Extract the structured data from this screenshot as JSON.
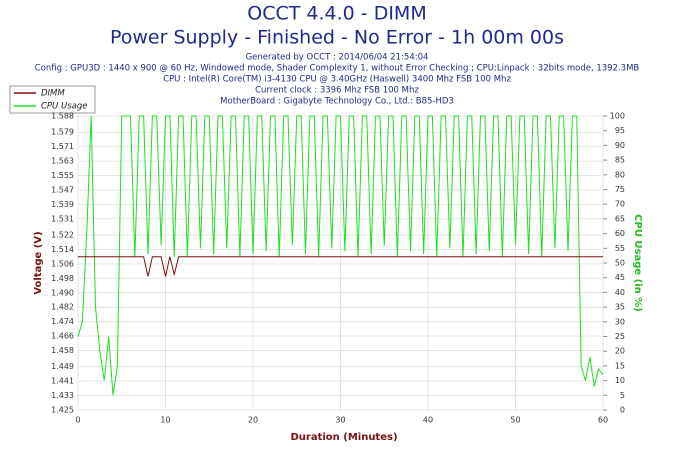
{
  "chart_data": {
    "type": "line",
    "title": "OCCT 4.4.0 - DIMM",
    "subtitle": "Power Supply - Finished - No Error - 1h 00m 00s",
    "info": [
      "Generated by OCCT : 2014/06/04 21:54:04",
      "Config : GPU3D : 1440 x 900 @ 60 Hz, Windowed mode, Shader Complexity 1, without Error Checking ; CPU:Linpack : 32bits mode, 1392.3MB",
      "CPU : Intel(R) Core(TM) i3-4130 CPU @ 3.40GHz (Haswell) 3400 Mhz FSB 100 Mhz",
      "Current clock : 3396 Mhz FSB 100 Mhz",
      "MotherBoard : Gigabyte Technology Co., Ltd.: B85-HD3"
    ],
    "xlabel": "Duration (Minutes)",
    "ylabel": "Voltage (V)",
    "y2label": "CPU Usage (in %)",
    "legend": "top-left",
    "grid": true,
    "xlim": [
      0,
      60
    ],
    "xticks": [
      0,
      10,
      20,
      30,
      40,
      50,
      60
    ],
    "ylim": [
      1.425,
      1.588
    ],
    "yticks": [
      1.425,
      1.433,
      1.441,
      1.449,
      1.458,
      1.466,
      1.474,
      1.482,
      {
        "value": 1.49,
        "label": "1.490"
      },
      1.498,
      1.506,
      1.514,
      1.522,
      1.531,
      1.539,
      1.547,
      1.555,
      1.563,
      1.571,
      1.579,
      1.588
    ],
    "y2lim": [
      0,
      100
    ],
    "y2ticks": [
      0,
      5,
      10,
      15,
      20,
      25,
      30,
      35,
      40,
      45,
      50,
      55,
      60,
      65,
      70,
      75,
      80,
      85,
      90,
      95,
      100
    ],
    "x": [
      0,
      0.5,
      1,
      1.5,
      2,
      2.5,
      3,
      3.5,
      4,
      4.5,
      5,
      5.5,
      6,
      6.5,
      7,
      7.5,
      8,
      8.5,
      9,
      9.5,
      10,
      10.5,
      11,
      11.5,
      12,
      12.5,
      13,
      13.5,
      14,
      14.5,
      15,
      15.5,
      16,
      16.5,
      17,
      17.5,
      18,
      18.5,
      19,
      19.5,
      20,
      20.5,
      21,
      21.5,
      22,
      22.5,
      23,
      23.5,
      24,
      24.5,
      25,
      25.5,
      26,
      26.5,
      27,
      27.5,
      28,
      28.5,
      29,
      29.5,
      30,
      30.5,
      31,
      31.5,
      32,
      32.5,
      33,
      33.5,
      34,
      34.5,
      35,
      35.5,
      36,
      36.5,
      37,
      37.5,
      38,
      38.5,
      39,
      39.5,
      40,
      40.5,
      41,
      41.5,
      42,
      42.5,
      43,
      43.5,
      44,
      44.5,
      45,
      45.5,
      46,
      46.5,
      47,
      47.5,
      48,
      48.5,
      49,
      49.5,
      50,
      50.5,
      51,
      51.5,
      52,
      52.5,
      53,
      53.5,
      54,
      54.5,
      55,
      55.5,
      56,
      56.5,
      57,
      57.5,
      58,
      58.5,
      59,
      59.5,
      60
    ],
    "series": [
      {
        "name": "DIMM",
        "color": "#7a1010",
        "values": [
          1.51,
          1.51,
          1.51,
          1.51,
          1.51,
          1.51,
          1.51,
          1.51,
          1.51,
          1.51,
          1.51,
          1.51,
          1.51,
          1.51,
          1.51,
          1.51,
          1.499,
          1.51,
          1.51,
          1.51,
          1.499,
          1.51,
          1.5,
          1.51,
          1.51,
          1.51,
          1.51,
          1.51,
          1.51,
          1.51,
          1.51,
          1.51,
          1.51,
          1.51,
          1.51,
          1.51,
          1.51,
          1.51,
          1.51,
          1.51,
          1.51,
          1.51,
          1.51,
          1.51,
          1.51,
          1.51,
          1.51,
          1.51,
          1.51,
          1.51,
          1.51,
          1.51,
          1.51,
          1.51,
          1.51,
          1.51,
          1.51,
          1.51,
          1.51,
          1.51,
          1.51,
          1.51,
          1.51,
          1.51,
          1.51,
          1.51,
          1.51,
          1.51,
          1.51,
          1.51,
          1.51,
          1.51,
          1.51,
          1.51,
          1.51,
          1.51,
          1.51,
          1.51,
          1.51,
          1.51,
          1.51,
          1.51,
          1.51,
          1.51,
          1.51,
          1.51,
          1.51,
          1.51,
          1.51,
          1.51,
          1.51,
          1.51,
          1.51,
          1.51,
          1.51,
          1.51,
          1.51,
          1.51,
          1.51,
          1.51,
          1.51,
          1.51,
          1.51,
          1.51,
          1.51,
          1.51,
          1.51,
          1.51,
          1.51,
          1.51,
          1.51,
          1.51,
          1.51,
          1.51,
          1.51,
          1.51,
          1.51,
          1.51,
          1.51,
          1.51,
          1.51
        ]
      },
      {
        "name": "CPU Usage",
        "color": "#22dd22",
        "axis": "y2",
        "values": [
          25,
          30,
          60,
          100,
          35,
          20,
          10,
          25,
          5,
          15,
          100,
          100,
          100,
          52,
          100,
          100,
          53,
          100,
          100,
          56,
          100,
          100,
          52,
          100,
          100,
          52,
          100,
          100,
          55,
          100,
          100,
          53,
          100,
          100,
          55,
          100,
          100,
          52,
          100,
          100,
          53,
          100,
          100,
          54,
          100,
          100,
          52,
          100,
          100,
          56,
          100,
          100,
          53,
          100,
          100,
          52,
          100,
          100,
          55,
          100,
          100,
          54,
          100,
          100,
          52,
          100,
          100,
          53,
          100,
          100,
          56,
          100,
          100,
          52,
          100,
          100,
          54,
          100,
          100,
          53,
          100,
          100,
          52,
          100,
          100,
          55,
          100,
          100,
          52,
          100,
          100,
          53,
          100,
          100,
          54,
          100,
          100,
          52,
          100,
          100,
          56,
          100,
          100,
          53,
          100,
          100,
          52,
          100,
          100,
          55,
          100,
          100,
          54,
          100,
          100,
          15,
          10,
          18,
          8,
          14,
          12
        ]
      }
    ]
  }
}
